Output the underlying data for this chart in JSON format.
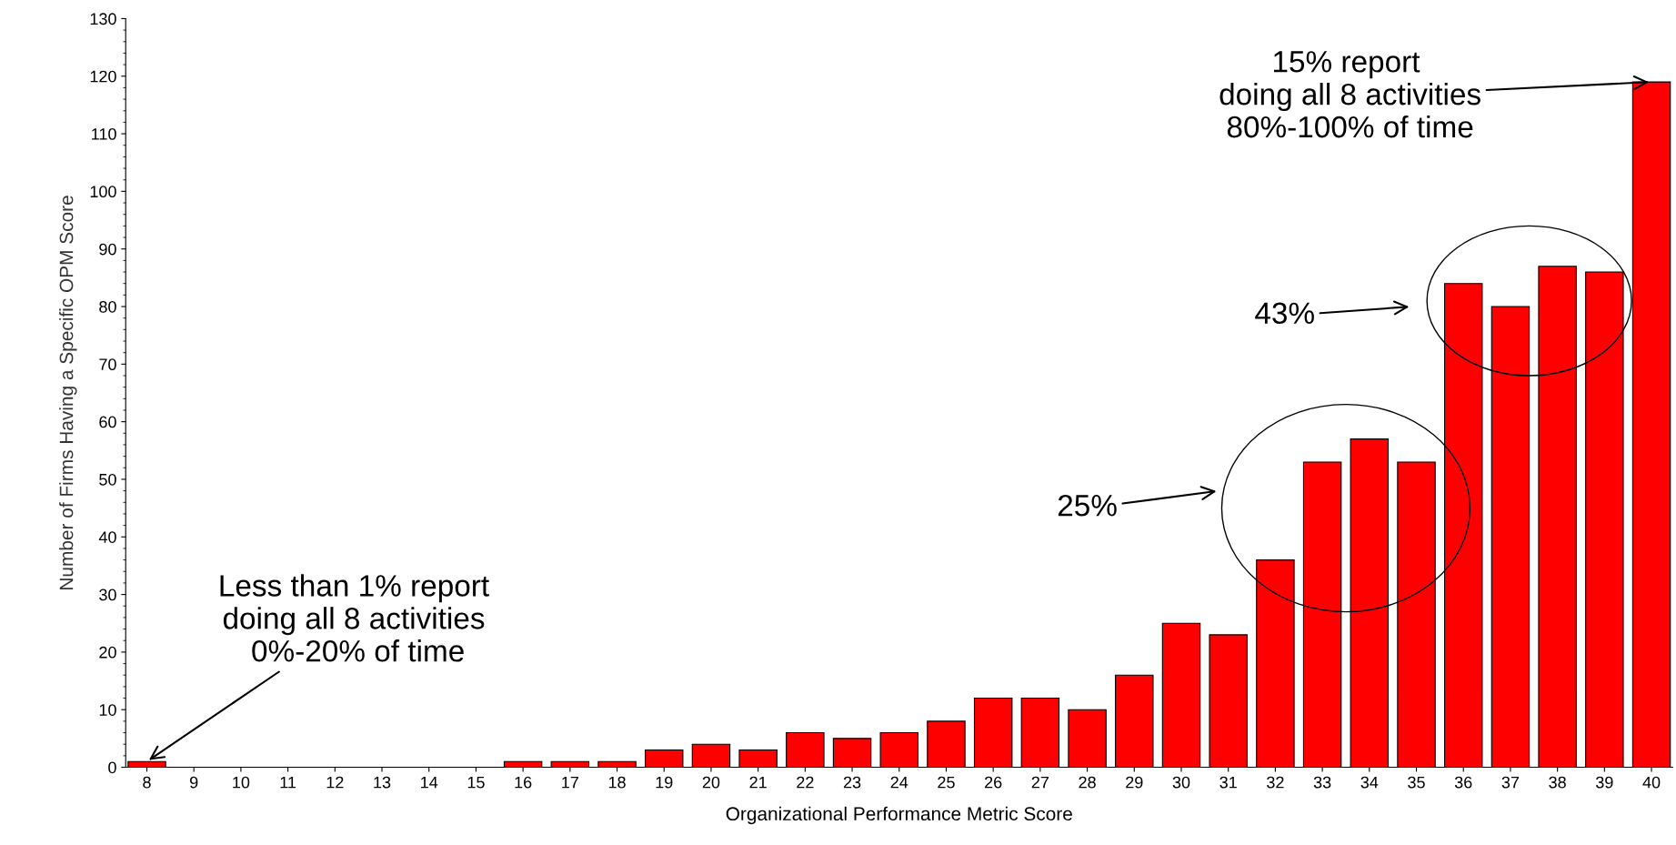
{
  "chart_data": {
    "type": "bar",
    "xlabel": "Organizational Performance Metric Score",
    "ylabel": "Number of Firms Having a Specific OPM Score",
    "categories": [
      "8",
      "9",
      "10",
      "11",
      "12",
      "13",
      "14",
      "15",
      "16",
      "17",
      "18",
      "19",
      "20",
      "21",
      "22",
      "23",
      "24",
      "25",
      "26",
      "27",
      "28",
      "29",
      "30",
      "31",
      "32",
      "33",
      "34",
      "35",
      "36",
      "37",
      "38",
      "39",
      "40"
    ],
    "values": [
      1,
      0,
      0,
      0,
      0,
      0,
      0,
      0,
      1,
      1,
      1,
      3,
      4,
      3,
      6,
      5,
      6,
      8,
      12,
      12,
      10,
      16,
      25,
      23,
      36,
      53,
      57,
      53,
      84,
      80,
      87,
      86,
      119
    ],
    "color": "#ff0000",
    "ylim": [
      0,
      130
    ],
    "yticks": [
      0,
      10,
      20,
      30,
      40,
      50,
      60,
      70,
      80,
      90,
      100,
      110,
      120,
      130
    ],
    "grid": false,
    "legend": false,
    "annotations": [
      {
        "text": "15% report\n doing all 8 activities\n 80%-100% of time",
        "x": "40",
        "y": 119
      },
      "43%",
      "25%",
      {
        "text": "Less than 1% report\ndoing all 8 activities\n 0%-20% of time",
        "x": "8",
        "y": 1
      }
    ]
  }
}
